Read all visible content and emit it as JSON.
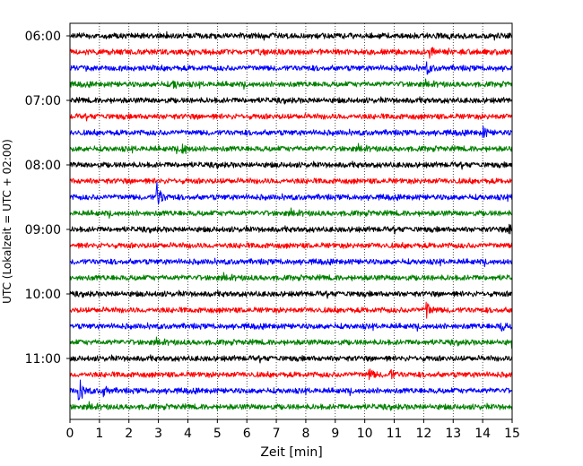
{
  "chart_data": {
    "type": "line",
    "chart_kind": "seismogram-helicorder",
    "xlabel": "Zeit  [min]",
    "ylabel": "UTC (Lokalzeit = UTC + 02:00)",
    "xlim": [
      0,
      15
    ],
    "x_ticks": [
      "0",
      "1",
      "2",
      "3",
      "4",
      "5",
      "6",
      "7",
      "8",
      "9",
      "10",
      "11",
      "12",
      "13",
      "14",
      "15"
    ],
    "y_tick_labels": [
      "06:00",
      "07:00",
      "08:00",
      "09:00",
      "10:00",
      "11:00"
    ],
    "trace_start_times": [
      "06:00",
      "06:15",
      "06:30",
      "06:45",
      "07:00",
      "07:15",
      "07:30",
      "07:45",
      "08:00",
      "08:15",
      "08:30",
      "08:45",
      "09:00",
      "09:15",
      "09:30",
      "09:45",
      "10:00",
      "10:15",
      "10:30",
      "10:45",
      "11:00",
      "11:15",
      "11:30",
      "11:45"
    ],
    "trace_colors": [
      "#000000",
      "#ff0000",
      "#0000ff",
      "#008000"
    ],
    "grid": {
      "x": true,
      "style": "dotted"
    },
    "events": [
      {
        "trace": "08:30",
        "time_min": 2.95,
        "amplitude": "large"
      },
      {
        "trace": "07:45",
        "time_min": 3.8,
        "amplitude": "medium"
      },
      {
        "trace": "10:15",
        "time_min": 12.1,
        "amplitude": "medium"
      },
      {
        "trace": "11:30",
        "time_min": 0.3,
        "amplitude": "large"
      },
      {
        "trace": "11:30",
        "time_min": 1.15,
        "amplitude": "small"
      },
      {
        "trace": "11:15",
        "time_min": 10.15,
        "amplitude": "small"
      },
      {
        "trace": "11:15",
        "time_min": 10.85,
        "amplitude": "small"
      },
      {
        "trace": "10:30",
        "time_min": 14.6,
        "amplitude": "small"
      },
      {
        "trace": "10:45",
        "time_min": 15.0,
        "amplitude": "small"
      },
      {
        "trace": "06:30",
        "time_min": 12.1,
        "amplitude": "small"
      },
      {
        "trace": "06:15",
        "time_min": 12.2,
        "amplitude": "small"
      },
      {
        "trace": "06:45",
        "time_min": 3.5,
        "amplitude": "small"
      },
      {
        "trace": "07:30",
        "time_min": 14.0,
        "amplitude": "small"
      },
      {
        "trace": "09:00",
        "time_min": 14.9,
        "amplitude": "small"
      }
    ]
  }
}
